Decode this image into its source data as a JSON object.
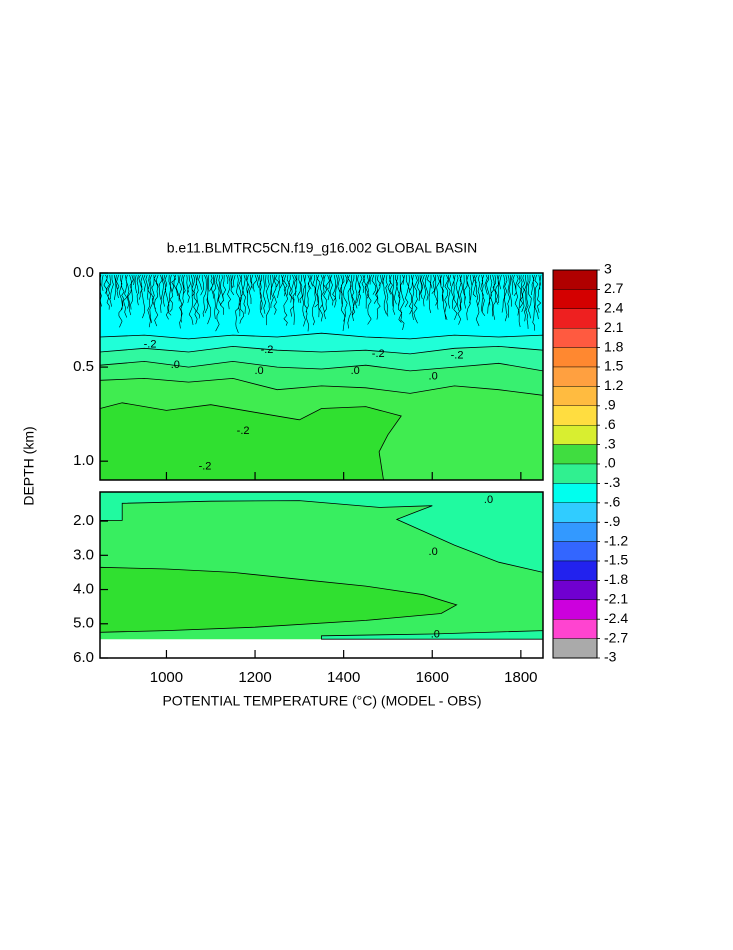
{
  "chart_data": {
    "type": "contour",
    "title": "b.e11.BLMTRC5CN.f19_g16.002 GLOBAL BASIN",
    "xlabel": "POTENTIAL TEMPERATURE (°C) (MODEL - OBS)",
    "ylabel": "DEPTH (km)",
    "xlim": [
      850,
      1850
    ],
    "xticks": [
      1000,
      1200,
      1400,
      1600,
      1800
    ],
    "panels": [
      {
        "ylim": [
          0,
          1.1
        ],
        "yticks": [
          {
            "value": 0,
            "label": "0.0"
          },
          0.5,
          {
            "value": 1,
            "label": "1.0"
          }
        ],
        "regions": [
          {
            "color": "#00ffff",
            "x": [
              850,
              1850,
              1850,
              850
            ],
            "y": [
              0,
              0,
              1.1,
              1.1
            ]
          },
          {
            "color": "#20ffd8",
            "x": [
              850,
              950,
              1050,
              1150,
              1250,
              1350,
              1450,
              1550,
              1650,
              1750,
              1850,
              1850,
              850
            ],
            "y": [
              0.34,
              0.33,
              0.35,
              0.33,
              0.34,
              0.32,
              0.34,
              0.35,
              0.33,
              0.34,
              0.33,
              1.1,
              1.1
            ]
          },
          {
            "color": "#30f8a0",
            "x": [
              850,
              950,
              1050,
              1150,
              1250,
              1350,
              1450,
              1550,
              1650,
              1750,
              1850,
              1850,
              850
            ],
            "y": [
              0.42,
              0.4,
              0.42,
              0.39,
              0.41,
              0.42,
              0.41,
              0.43,
              0.4,
              0.39,
              0.41,
              1.1,
              1.1
            ]
          },
          {
            "color": "#38f070",
            "x": [
              850,
              950,
              1050,
              1150,
              1250,
              1350,
              1450,
              1550,
              1650,
              1750,
              1850,
              1850,
              850
            ],
            "y": [
              0.49,
              0.47,
              0.5,
              0.47,
              0.5,
              0.51,
              0.49,
              0.52,
              0.5,
              0.48,
              0.52,
              1.1,
              1.1
            ]
          },
          {
            "color": "#40ec50",
            "x": [
              850,
              950,
              1050,
              1150,
              1250,
              1350,
              1450,
              1550,
              1650,
              1750,
              1850,
              1850,
              850
            ],
            "y": [
              0.57,
              0.56,
              0.58,
              0.56,
              0.62,
              0.6,
              0.61,
              0.64,
              0.6,
              0.62,
              0.65,
              1.1,
              1.1
            ]
          },
          {
            "color": "#30e030",
            "x": [
              850,
              900,
              1000,
              1100,
              1200,
              1300,
              1350,
              1450,
              1530,
              1500,
              1480,
              1490,
              850
            ],
            "y": [
              0.72,
              0.69,
              0.73,
              0.7,
              0.74,
              0.78,
              0.72,
              0.71,
              0.76,
              0.86,
              0.95,
              1.1,
              1.1
            ]
          }
        ],
        "contour_labels": [
          {
            "text": "-.2",
            "x": 963,
            "y": 0.38
          },
          {
            "text": ".0",
            "x": 1020,
            "y": 0.49
          },
          {
            "text": "-.2",
            "x": 1227,
            "y": 0.41
          },
          {
            "text": ".0",
            "x": 1209,
            "y": 0.52
          },
          {
            "text": "-.2",
            "x": 1478,
            "y": 0.43
          },
          {
            "text": ".0",
            "x": 1426,
            "y": 0.52
          },
          {
            "text": "-.2",
            "x": 1656,
            "y": 0.44
          },
          {
            "text": ".0",
            "x": 1602,
            "y": 0.55
          },
          {
            "text": "-.2",
            "x": 1173,
            "y": 0.84
          },
          {
            "text": "-.2",
            "x": 1087,
            "y": 1.03
          }
        ]
      },
      {
        "ylim": [
          1.15,
          6.0
        ],
        "yticks": [
          {
            "value": 2,
            "label": "2.0"
          },
          {
            "value": 3,
            "label": "3.0"
          },
          {
            "value": 4,
            "label": "4.0"
          },
          {
            "value": 5,
            "label": "5.0"
          },
          {
            "value": 6,
            "label": "6.0"
          }
        ],
        "regions": [
          {
            "color": "#38ee60",
            "x": [
              850,
              1850,
              1850,
              850
            ],
            "y": [
              1.15,
              1.15,
              5.45,
              5.45
            ]
          },
          {
            "color": "#20faa0",
            "x": [
              850,
              1850,
              1850,
              1750,
              1650,
              1520,
              1560,
              1600,
              1480,
              1300,
              1100,
              900,
              900,
              850
            ],
            "y": [
              1.15,
              1.15,
              3.5,
              3.2,
              2.7,
              1.95,
              1.75,
              1.55,
              1.6,
              1.4,
              1.42,
              1.48,
              1.98,
              1.98
            ]
          },
          {
            "color": "#30e030",
            "x": [
              850,
              1000,
              1150,
              1300,
              1450,
              1580,
              1655,
              1620,
              1450,
              1200,
              1000,
              850
            ],
            "y": [
              3.35,
              3.4,
              3.5,
              3.7,
              3.9,
              4.15,
              4.45,
              4.7,
              4.9,
              5.1,
              5.2,
              5.25
            ]
          },
          {
            "color": "#20faa0",
            "x": [
              1350,
              1600,
              1850,
              1850,
              1350
            ],
            "y": [
              5.35,
              5.3,
              5.2,
              5.45,
              5.45
            ]
          }
        ],
        "contour_labels": [
          {
            "text": ".0",
            "x": 1727,
            "y": 1.39
          },
          {
            "text": ".0",
            "x": 1602,
            "y": 2.9
          },
          {
            "text": ".0",
            "x": 1607,
            "y": 5.32
          }
        ]
      }
    ],
    "colorbar": {
      "ticks": [
        3,
        2.7,
        2.4,
        2.1,
        1.8,
        1.5,
        1.2,
        {
          "value": 0.9,
          "label": ".9"
        },
        {
          "value": 0.6,
          "label": ".6"
        },
        {
          "value": 0.3,
          "label": ".3"
        },
        {
          "value": 0,
          "label": ".0"
        },
        {
          "value": -0.3,
          "label": "-.3"
        },
        {
          "value": -0.6,
          "label": "-.6"
        },
        {
          "value": -0.9,
          "label": "-.9"
        },
        -1.2,
        -1.5,
        -1.8,
        -2.1,
        -2.4,
        -2.7,
        -3
      ],
      "colors": [
        "#b00000",
        "#d40000",
        "#ee2020",
        "#ff5a40",
        "#ff8830",
        "#ffa040",
        "#ffbb40",
        "#ffdd40",
        "#d8ee30",
        "#40dd40",
        "#30f090",
        "#00ffee",
        "#30ccff",
        "#3399ff",
        "#3366ff",
        "#2222ee",
        "#7000d0",
        "#cc00dd",
        "#ff44d0",
        "#aaaaaa"
      ]
    }
  }
}
